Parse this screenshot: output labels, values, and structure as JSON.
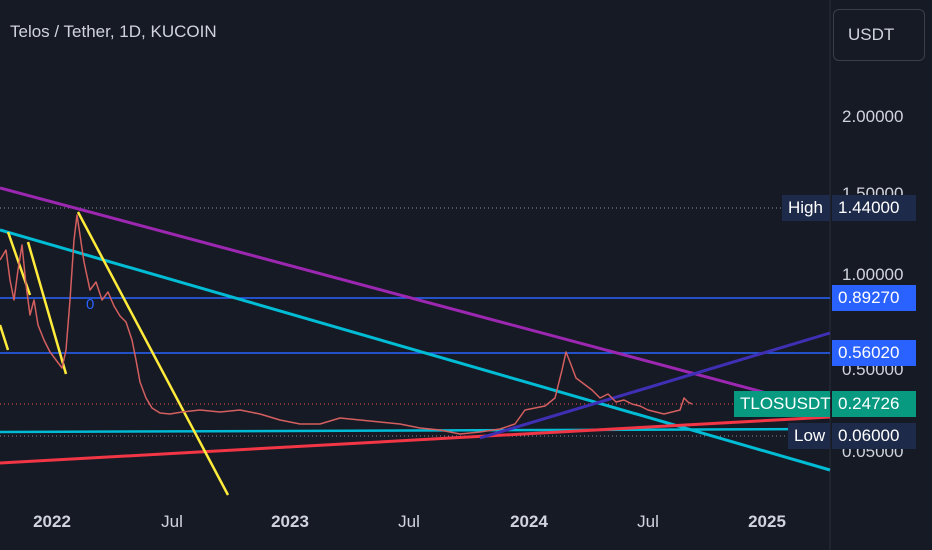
{
  "header": {
    "title": "Telos / Tether, 1D, KUCOIN",
    "currency": "USDT"
  },
  "chart_data": {
    "type": "line",
    "symbol": "TLOSUSDT",
    "y_ticks": [
      "2.00000",
      "1.50000",
      "1.00000",
      "0.50000",
      "0.05000"
    ],
    "x_ticks": [
      {
        "label": "2022",
        "year": true
      },
      {
        "label": "Jul",
        "year": false
      },
      {
        "label": "2023",
        "year": true
      },
      {
        "label": "Jul",
        "year": false
      },
      {
        "label": "2024",
        "year": true
      },
      {
        "label": "Jul",
        "year": false
      },
      {
        "label": "2025",
        "year": true
      }
    ],
    "last_price": 0.24726,
    "high": 1.44,
    "low": 0.06,
    "horizontal_levels": [
      0.8927,
      0.5602
    ],
    "badges": {
      "high_label": "High",
      "high_value": "1.44000",
      "level1": "0.89270",
      "level2": "0.56020",
      "symbol_label": "TLOSUSDT",
      "last_value": "0.24726",
      "low_label": "Low",
      "low_value": "0.06000"
    },
    "line_marker": "0",
    "colors": {
      "up": "#26a69a",
      "down": "#ef5350",
      "price_badge": "#089981",
      "level": "#2962ff"
    }
  }
}
